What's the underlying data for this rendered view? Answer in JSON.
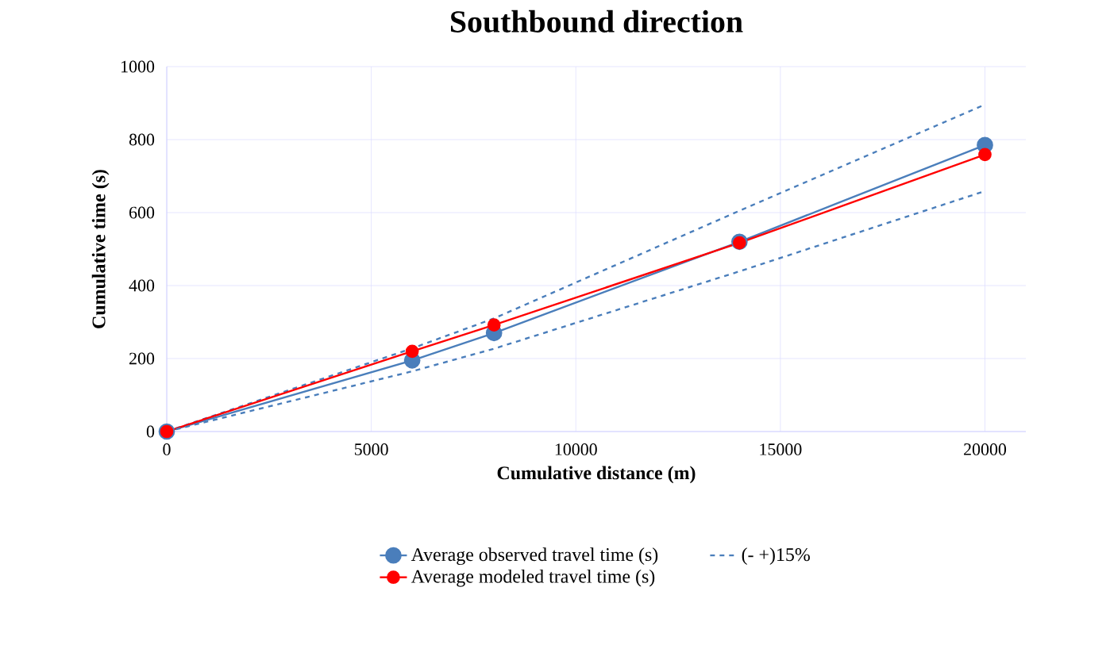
{
  "chart_data": {
    "type": "line",
    "title": "Southbound direction",
    "xlabel": "Cumulative distance (m)",
    "ylabel": "Cumulative time (s)",
    "x": [
      0,
      6000,
      8000,
      14000,
      20000
    ],
    "series": [
      {
        "name": "Average observed travel time (s)",
        "color": "#4a7ebb",
        "values": [
          0,
          195,
          270,
          520,
          785
        ]
      },
      {
        "name": "(- +)15%",
        "color": "#4a7ebb",
        "line_style": "dashed",
        "marker": "none",
        "values": [
          0,
          228,
          310,
          605,
          896
        ]
      },
      {
        "name": "Average modeled travel time (s)",
        "color": "#ff0000",
        "values": [
          0,
          220,
          292,
          517,
          759
        ]
      },
      {
        "color": "#4a7ebb",
        "line_style": "dashed",
        "marker": "none",
        "values": [
          0,
          165,
          227,
          439,
          659
        ]
      }
    ],
    "xlim": [
      0,
      21000
    ],
    "ylim": [
      0,
      1000
    ],
    "xticks": [
      0,
      5000,
      10000,
      15000,
      20000
    ],
    "yticks": [
      0,
      200,
      400,
      600,
      800,
      1000
    ],
    "grid": true,
    "legend": "bottom",
    "marker": "circle",
    "line_style": "solid"
  }
}
